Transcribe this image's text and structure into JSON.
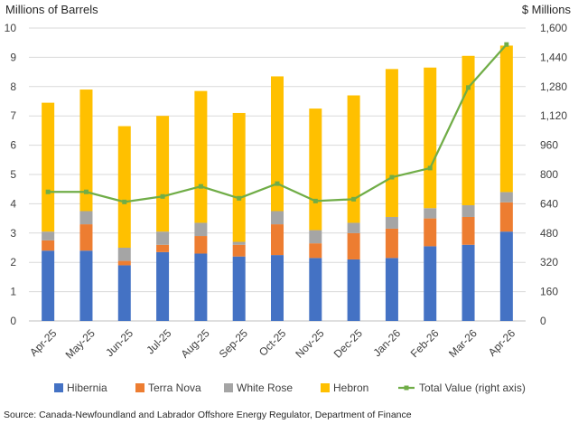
{
  "chart_data": {
    "type": "bar",
    "stacked": true,
    "categories": [
      "Apr-25",
      "May-25",
      "Jun-25",
      "Jul-25",
      "Aug-25",
      "Sep-25",
      "Oct-25",
      "Nov-25",
      "Dec-25",
      "Jan-26",
      "Feb-26",
      "Mar-26",
      "Apr-26"
    ],
    "series": [
      {
        "name": "Hibernia",
        "type": "bar",
        "axis": "left",
        "color": "#4472C4",
        "values": [
          2.4,
          2.4,
          1.9,
          2.35,
          2.3,
          2.2,
          2.25,
          2.15,
          2.1,
          2.15,
          2.55,
          2.6,
          3.05
        ]
      },
      {
        "name": "Terra Nova",
        "type": "bar",
        "axis": "left",
        "color": "#ED7D31",
        "values": [
          0.35,
          0.9,
          0.15,
          0.25,
          0.6,
          0.4,
          1.05,
          0.5,
          0.9,
          1.0,
          0.95,
          0.95,
          1.0
        ]
      },
      {
        "name": "White Rose",
        "type": "bar",
        "axis": "left",
        "color": "#A5A5A5",
        "values": [
          0.3,
          0.45,
          0.45,
          0.45,
          0.45,
          0.1,
          0.45,
          0.45,
          0.35,
          0.4,
          0.35,
          0.4,
          0.35
        ]
      },
      {
        "name": "Hebron",
        "type": "bar",
        "axis": "left",
        "color": "#FFC000",
        "values": [
          4.4,
          4.15,
          4.15,
          3.95,
          4.5,
          4.4,
          4.6,
          4.15,
          4.35,
          5.05,
          4.8,
          5.1,
          5.0
        ]
      },
      {
        "name": "Total Value (right axis)",
        "type": "line",
        "axis": "right",
        "color": "#70AD47",
        "values": [
          705,
          705,
          650,
          680,
          735,
          670,
          750,
          655,
          665,
          785,
          835,
          1275,
          1510
        ]
      }
    ],
    "ylabel": "Millions of Barrels",
    "y2label": "$ Millions",
    "ylim": [
      0,
      10
    ],
    "yticks": [
      "0",
      "1",
      "2",
      "3",
      "4",
      "5",
      "6",
      "7",
      "8",
      "9",
      "10"
    ],
    "y2lim": [
      0,
      1600
    ],
    "y2ticks": [
      "0",
      "160",
      "320",
      "480",
      "640",
      "800",
      "960",
      "1,120",
      "1,280",
      "1,440",
      "1,600"
    ],
    "grid": true,
    "legend_position": "bottom",
    "source": "Source: Canada-Newfoundland and Labrador Offshore Energy Regulator, Department of Finance"
  }
}
